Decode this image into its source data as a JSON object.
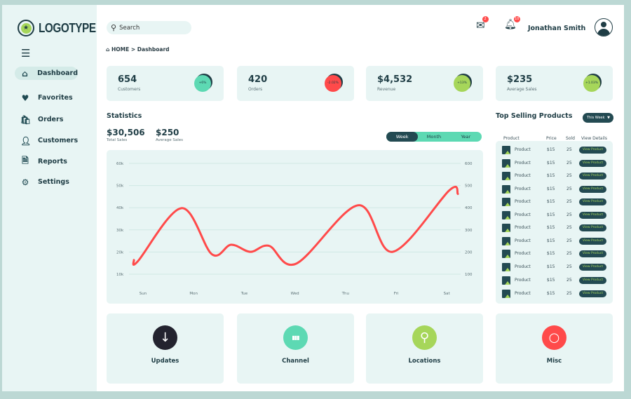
{
  "brand": {
    "logo": "LOGOTYPE"
  },
  "sidebar": {
    "items": [
      {
        "label": "Dashboard",
        "icon": "home-icon",
        "active": true
      },
      {
        "label": "Favorites",
        "icon": "heart-icon"
      },
      {
        "label": "Orders",
        "icon": "bag-icon"
      },
      {
        "label": "Customers",
        "icon": "user-icon"
      },
      {
        "label": "Reports",
        "icon": "document-icon"
      },
      {
        "label": "Settings",
        "icon": "gear-icon"
      }
    ]
  },
  "header": {
    "search_placeholder": "Search",
    "mail_count": "2",
    "notif_count": "10",
    "user": "Jonathan Smith"
  },
  "breadcrumb": {
    "home": "HOME",
    "sep": ">",
    "current": "Dashboard"
  },
  "stats": [
    {
      "value": "654",
      "label": "Customers",
      "change": "+6%",
      "color": "#5dd9b3"
    },
    {
      "value": "420",
      "label": "Orders",
      "change": "-2.02%",
      "color": "#ff4a4a"
    },
    {
      "value": "$4,532",
      "label": "Revenue",
      "change": "+13%",
      "color": "#a6d65a"
    },
    {
      "value": "$235",
      "label": "Average Sales",
      "change": "+1.03%",
      "color": "#a6d65a"
    }
  ],
  "statistics": {
    "title": "Statistics",
    "total": "$30,506",
    "total_label": "Total Sales",
    "avg": "$250",
    "avg_label": "Average Sales",
    "ranges": [
      "Week",
      "Month",
      "Year"
    ],
    "selected": "Week"
  },
  "chart_data": {
    "type": "line",
    "categories": [
      "Sun",
      "Mon",
      "Tue",
      "Wed",
      "Thu",
      "Fri",
      "Sat"
    ],
    "y_ticks": [
      "10k",
      "20k",
      "30k",
      "40k",
      "50k",
      "60k"
    ],
    "y2_ticks": [
      "100",
      "200",
      "300",
      "400",
      "500",
      "600"
    ],
    "ylim": [
      10000,
      60000
    ],
    "grid": true,
    "color": "#ff4a4a",
    "points": [
      [
        -0.18,
        16400
      ],
      [
        -0.1,
        15900
      ],
      [
        0.76,
        39800
      ],
      [
        1.36,
        19000
      ],
      [
        1.74,
        23300
      ],
      [
        2.12,
        20100
      ],
      [
        2.49,
        22800
      ],
      [
        3.03,
        14800
      ],
      [
        4.25,
        41100
      ],
      [
        4.93,
        20100
      ],
      [
        6.05,
        47800
      ],
      [
        6.22,
        46200
      ]
    ]
  },
  "top": {
    "title": "Top Selling Products",
    "filter": "This Week",
    "headers": [
      "Product",
      "Price",
      "Sold",
      "View Details"
    ],
    "rows": [
      {
        "name": "Product",
        "price": "$15",
        "sold": "25",
        "action": "View Product"
      },
      {
        "name": "Product",
        "price": "$15",
        "sold": "25",
        "action": "View Product"
      },
      {
        "name": "Product",
        "price": "$15",
        "sold": "25",
        "action": "View Product"
      },
      {
        "name": "Product",
        "price": "$15",
        "sold": "25",
        "action": "View Product"
      },
      {
        "name": "Product",
        "price": "$15",
        "sold": "25",
        "action": "View Product"
      },
      {
        "name": "Product",
        "price": "$15",
        "sold": "25",
        "action": "View Product"
      },
      {
        "name": "Product",
        "price": "$15",
        "sold": "25",
        "action": "View Product"
      },
      {
        "name": "Product",
        "price": "$15",
        "sold": "25",
        "action": "View Product"
      },
      {
        "name": "Product",
        "price": "$15",
        "sold": "25",
        "action": "View Product"
      },
      {
        "name": "Product",
        "price": "$15",
        "sold": "25",
        "action": "View Product"
      },
      {
        "name": "Product",
        "price": "$15",
        "sold": "25",
        "action": "View Product"
      },
      {
        "name": "Product",
        "price": "$15",
        "sold": "25",
        "action": "View Product"
      }
    ]
  },
  "tiles": [
    {
      "label": "Updates",
      "icon": "download-icon",
      "color": "#23232f"
    },
    {
      "label": "Channel",
      "icon": "bar-chart-icon",
      "color": "#5dd9b3"
    },
    {
      "label": "Locations",
      "icon": "location-pin-icon",
      "color": "#a6d65a"
    },
    {
      "label": "Misc",
      "icon": "circle-icon",
      "color": "#ff4a4a"
    }
  ]
}
